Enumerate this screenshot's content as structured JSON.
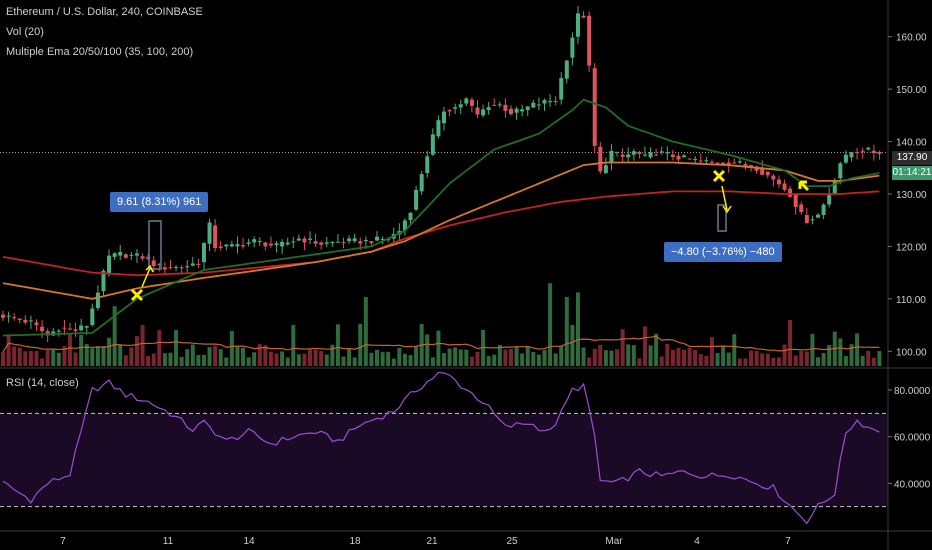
{
  "legend": {
    "symbol": "Ethereum / U.S. Dollar, 240, COINBASE",
    "volume": "Vol (20)",
    "ema": "Multiple Ema 20/50/100 (35, 100, 200)",
    "rsi": "RSI (14, close)"
  },
  "price_labels": {
    "last_price": "137.90",
    "countdown": "01:14:21"
  },
  "annotations": {
    "gain": "9.61 (8.31%) 961",
    "loss": "−4.80 (−3.76%) −480"
  },
  "colors": {
    "background": "#000000",
    "up_candle": "#4caf82",
    "down_candle": "#e0525e",
    "ema_fast": "#1f6e24",
    "ema_mid": "#d8772a",
    "ema_slow": "#c42222",
    "rsi_line": "#9c4fd1",
    "rsi_band": "#1a0a26",
    "annotation": "#3d6ec2",
    "marker": "#ffee00"
  },
  "chart_data": [
    {
      "type": "candlestick",
      "title": "Ethereum / U.S. Dollar, 240, COINBASE",
      "ylim": [
        97,
        167
      ],
      "y_ticks": [
        100,
        110,
        120,
        130,
        140,
        150,
        160
      ],
      "y_tick_labels": [
        "100.00",
        "110.00",
        "120.00",
        "130.00",
        "140.00",
        "150.00",
        "160.00"
      ],
      "x_tick_labels": [
        "7",
        "11",
        "14",
        "18",
        "21",
        "25",
        "Mar",
        "4",
        "7"
      ],
      "close_path": [
        [
          0,
          107
        ],
        [
          6,
          105.5
        ],
        [
          9,
          103
        ],
        [
          11,
          104.5
        ],
        [
          14,
          104
        ],
        [
          16,
          105
        ],
        [
          20,
          118
        ],
        [
          22,
          118.5
        ],
        [
          26,
          118
        ],
        [
          29,
          116
        ],
        [
          33,
          116
        ],
        [
          36,
          117
        ],
        [
          38,
          124
        ],
        [
          39,
          120
        ],
        [
          42,
          120
        ],
        [
          46,
          121
        ],
        [
          50,
          120
        ],
        [
          54,
          121.5
        ],
        [
          58,
          120.5
        ],
        [
          62,
          121
        ],
        [
          66,
          121
        ],
        [
          70,
          121.5
        ],
        [
          72,
          123
        ],
        [
          74,
          127
        ],
        [
          76,
          134
        ],
        [
          78,
          141
        ],
        [
          80,
          146
        ],
        [
          82,
          146.5
        ],
        [
          84,
          148
        ],
        [
          86,
          145
        ],
        [
          88,
          147
        ],
        [
          90,
          147
        ],
        [
          92,
          145.5
        ],
        [
          94,
          146
        ],
        [
          96,
          147
        ],
        [
          98,
          147.5
        ],
        [
          100,
          148
        ],
        [
          102,
          156
        ],
        [
          104,
          164
        ],
        [
          105,
          164
        ],
        [
          106,
          154
        ],
        [
          107,
          139
        ],
        [
          108,
          134
        ],
        [
          110,
          138
        ],
        [
          112,
          137
        ],
        [
          114,
          138
        ],
        [
          116,
          137
        ],
        [
          118,
          138
        ],
        [
          120,
          137.5
        ],
        [
          124,
          136.5
        ],
        [
          128,
          136
        ],
        [
          132,
          136
        ],
        [
          136,
          135
        ],
        [
          140,
          132
        ],
        [
          142,
          130
        ],
        [
          144,
          126
        ],
        [
          145,
          125
        ],
        [
          147,
          126
        ],
        [
          149,
          130
        ],
        [
          151,
          136
        ],
        [
          153,
          138
        ],
        [
          155,
          138.5
        ],
        [
          157,
          138
        ]
      ],
      "ema_fast": [
        [
          0,
          103
        ],
        [
          16,
          103.5
        ],
        [
          24,
          110
        ],
        [
          36,
          115.5
        ],
        [
          56,
          118.5
        ],
        [
          66,
          120
        ],
        [
          72,
          123
        ],
        [
          80,
          132
        ],
        [
          88,
          138.5
        ],
        [
          96,
          141.5
        ],
        [
          102,
          146
        ],
        [
          104,
          148
        ],
        [
          108,
          146.5
        ],
        [
          112,
          143
        ],
        [
          120,
          140
        ],
        [
          130,
          137.5
        ],
        [
          140,
          134.5
        ],
        [
          144,
          131.5
        ],
        [
          148,
          131.5
        ],
        [
          152,
          133
        ],
        [
          157,
          134
        ]
      ],
      "ema_mid": [
        [
          0,
          113
        ],
        [
          16,
          110
        ],
        [
          24,
          112
        ],
        [
          36,
          114
        ],
        [
          56,
          117
        ],
        [
          66,
          119
        ],
        [
          72,
          121
        ],
        [
          80,
          125
        ],
        [
          88,
          128.5
        ],
        [
          96,
          132
        ],
        [
          104,
          135.5
        ],
        [
          108,
          136
        ],
        [
          120,
          136
        ],
        [
          130,
          135.5
        ],
        [
          140,
          134.5
        ],
        [
          146,
          132.5
        ],
        [
          150,
          132.5
        ],
        [
          157,
          133.5
        ]
      ],
      "ema_slow": [
        [
          0,
          118
        ],
        [
          16,
          115
        ],
        [
          24,
          114.5
        ],
        [
          36,
          115
        ],
        [
          56,
          117
        ],
        [
          66,
          119
        ],
        [
          72,
          121.5
        ],
        [
          80,
          124
        ],
        [
          90,
          126.5
        ],
        [
          100,
          128.5
        ],
        [
          108,
          129.5
        ],
        [
          120,
          130.5
        ],
        [
          130,
          130.5
        ],
        [
          140,
          130
        ],
        [
          150,
          130
        ],
        [
          157,
          130.5
        ]
      ],
      "volume_spikes": [
        [
          20,
          0.65
        ],
        [
          65,
          0.75
        ],
        [
          98,
          0.9
        ],
        [
          101,
          0.75
        ],
        [
          103,
          0.8
        ],
        [
          141,
          0.5
        ],
        [
          145,
          0.35
        ],
        [
          150,
          0.3
        ]
      ]
    },
    {
      "type": "line",
      "title": "RSI (14, close)",
      "ylim": [
        20,
        89
      ],
      "y_ticks": [
        40,
        60,
        80
      ],
      "y_tick_labels": [
        "40.0000",
        "60.0000",
        "80.0000"
      ],
      "bands": [
        30,
        70
      ],
      "values": [
        [
          0,
          40
        ],
        [
          5,
          33
        ],
        [
          8,
          40
        ],
        [
          12,
          44
        ],
        [
          16,
          80
        ],
        [
          19,
          83
        ],
        [
          22,
          78
        ],
        [
          26,
          75
        ],
        [
          30,
          70
        ],
        [
          34,
          63
        ],
        [
          36,
          66
        ],
        [
          40,
          58
        ],
        [
          44,
          62
        ],
        [
          48,
          57
        ],
        [
          52,
          60
        ],
        [
          56,
          62
        ],
        [
          60,
          58
        ],
        [
          64,
          65
        ],
        [
          70,
          71
        ],
        [
          74,
          80
        ],
        [
          78,
          87
        ],
        [
          80,
          86
        ],
        [
          82,
          82
        ],
        [
          86,
          75
        ],
        [
          90,
          64
        ],
        [
          94,
          66
        ],
        [
          98,
          62
        ],
        [
          100,
          70
        ],
        [
          102,
          80
        ],
        [
          104,
          82
        ],
        [
          106,
          60
        ],
        [
          107,
          41
        ],
        [
          110,
          40
        ],
        [
          114,
          45
        ],
        [
          118,
          43
        ],
        [
          122,
          45
        ],
        [
          126,
          43
        ],
        [
          130,
          44
        ],
        [
          134,
          41
        ],
        [
          138,
          38
        ],
        [
          140,
          33
        ],
        [
          142,
          28
        ],
        [
          144,
          24
        ],
        [
          146,
          30
        ],
        [
          149,
          36
        ],
        [
          151,
          62
        ],
        [
          153,
          67
        ],
        [
          155,
          64
        ],
        [
          157,
          63
        ]
      ]
    }
  ]
}
